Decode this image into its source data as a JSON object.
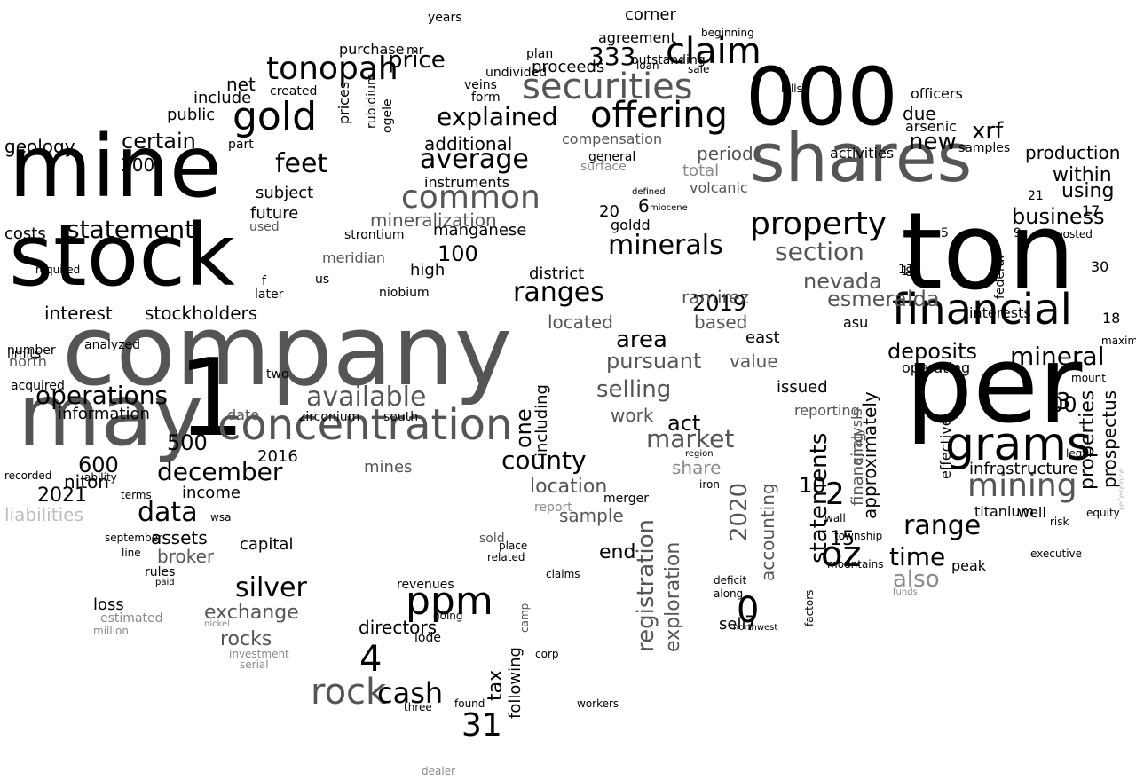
{
  "colors": {
    "background": "#ffffff",
    "primary": "#000000",
    "dark": "#555555",
    "mid": "#8a8a8a",
    "light": "#bdbdbd"
  },
  "words": [
    {
      "t": "company",
      "c": "#555555"
    },
    {
      "t": "mine",
      "c": "#000000"
    },
    {
      "t": "stock",
      "c": "#000000"
    },
    {
      "t": "may",
      "c": "#555555"
    },
    {
      "t": "1",
      "c": "#000000"
    },
    {
      "t": "ton",
      "c": "#000000"
    },
    {
      "t": "per",
      "c": "#000000"
    },
    {
      "t": "000",
      "c": "#000000"
    },
    {
      "t": "shares",
      "c": "#555555"
    },
    {
      "t": "concentration",
      "c": "#555555"
    },
    {
      "t": "financial",
      "c": "#000000"
    },
    {
      "t": "gold",
      "c": "#000000"
    },
    {
      "t": "securities",
      "c": "#555555"
    },
    {
      "t": "claim",
      "c": "#000000"
    },
    {
      "t": "offering",
      "c": "#000000"
    },
    {
      "t": "tonopah",
      "c": "#000000"
    },
    {
      "t": "grams",
      "c": "#000000"
    },
    {
      "t": "mining",
      "c": "#555555"
    },
    {
      "t": "common",
      "c": "#555555"
    },
    {
      "t": "property",
      "c": "#000000"
    },
    {
      "t": "statement",
      "c": "#000000"
    },
    {
      "t": "minerals",
      "c": "#000000"
    },
    {
      "t": "ranges",
      "c": "#000000"
    },
    {
      "t": "operations",
      "c": "#000000"
    },
    {
      "t": "available",
      "c": "#555555"
    },
    {
      "t": "average",
      "c": "#000000"
    },
    {
      "t": "explained",
      "c": "#000000"
    },
    {
      "t": "mineral",
      "c": "#000000"
    },
    {
      "t": "feet",
      "c": "#000000"
    },
    {
      "t": "silver",
      "c": "#000000"
    },
    {
      "t": "ppm",
      "c": "#000000"
    },
    {
      "t": "oz",
      "c": "#000000"
    },
    {
      "t": "data",
      "c": "#000000"
    },
    {
      "t": "market",
      "c": "#555555"
    },
    {
      "t": "county",
      "c": "#000000"
    },
    {
      "t": "selling",
      "c": "#555555"
    },
    {
      "t": "area",
      "c": "#000000"
    },
    {
      "t": "section",
      "c": "#555555"
    },
    {
      "t": "range",
      "c": "#000000"
    },
    {
      "t": "deposits",
      "c": "#000000"
    },
    {
      "t": "december",
      "c": "#000000"
    },
    {
      "t": "new",
      "c": "#000000"
    },
    {
      "t": "xrf",
      "c": "#000000"
    },
    {
      "t": "business",
      "c": "#000000"
    },
    {
      "t": "nevada",
      "c": "#555555"
    },
    {
      "t": "esmeralda",
      "c": "#555555"
    },
    {
      "t": "time",
      "c": "#000000"
    },
    {
      "t": "also",
      "c": "#8a8a8a"
    },
    {
      "t": "certain",
      "c": "#000000"
    },
    {
      "t": "interest",
      "c": "#000000"
    },
    {
      "t": "stockholders",
      "c": "#000000"
    },
    {
      "t": "price",
      "c": "#000000"
    },
    {
      "t": "333",
      "c": "#000000"
    },
    {
      "t": "within",
      "c": "#000000"
    },
    {
      "t": "production",
      "c": "#000000"
    },
    {
      "t": "using",
      "c": "#000000"
    },
    {
      "t": "rock",
      "c": "#555555"
    },
    {
      "t": "cash",
      "c": "#000000"
    },
    {
      "t": "4",
      "c": "#000000"
    },
    {
      "t": "31",
      "c": "#000000"
    },
    {
      "t": "0",
      "c": "#000000"
    },
    {
      "t": "2",
      "c": "#000000"
    },
    {
      "t": "3",
      "c": "#000000"
    },
    {
      "t": "statements",
      "c": "#000000"
    },
    {
      "t": "registration",
      "c": "#555555"
    },
    {
      "t": "exploration",
      "c": "#555555"
    },
    {
      "t": "approximately",
      "c": "#000000"
    },
    {
      "t": "prospectus",
      "c": "#000000"
    },
    {
      "t": "properties",
      "c": "#000000"
    },
    {
      "t": "2020",
      "c": "#555555"
    },
    {
      "t": "2019",
      "c": "#000000"
    },
    {
      "t": "accounting",
      "c": "#555555"
    },
    {
      "t": "financing",
      "c": "#555555"
    },
    {
      "t": "one",
      "c": "#000000"
    },
    {
      "t": "including",
      "c": "#000000"
    },
    {
      "t": "act",
      "c": "#000000"
    },
    {
      "t": "pursuant",
      "c": "#555555"
    },
    {
      "t": "exchange",
      "c": "#555555"
    },
    {
      "t": "rocks",
      "c": "#555555"
    },
    {
      "t": "broker",
      "c": "#555555"
    },
    {
      "t": "assets",
      "c": "#000000"
    },
    {
      "t": "liabilities",
      "c": "#bdbdbd"
    },
    {
      "t": "information",
      "c": "#000000"
    },
    {
      "t": "geology",
      "c": "#000000"
    },
    {
      "t": "costs",
      "c": "#000000"
    },
    {
      "t": "include",
      "c": "#000000"
    },
    {
      "t": "net",
      "c": "#000000"
    },
    {
      "t": "public",
      "c": "#000000"
    },
    {
      "t": "additional",
      "c": "#000000"
    },
    {
      "t": "mineralization",
      "c": "#555555"
    },
    {
      "t": "manganese",
      "c": "#000000"
    },
    {
      "t": "instruments",
      "c": "#000000"
    },
    {
      "t": "period",
      "c": "#555555"
    },
    {
      "t": "total",
      "c": "#8a8a8a"
    },
    {
      "t": "volcanic",
      "c": "#555555"
    },
    {
      "t": "ramirez",
      "c": "#555555"
    },
    {
      "t": "district",
      "c": "#000000"
    },
    {
      "t": "located",
      "c": "#555555"
    },
    {
      "t": "based",
      "c": "#555555"
    },
    {
      "t": "east",
      "c": "#000000"
    },
    {
      "t": "value",
      "c": "#555555"
    },
    {
      "t": "issued",
      "c": "#000000"
    },
    {
      "t": "reporting",
      "c": "#555555"
    },
    {
      "t": "analysis",
      "c": "#555555"
    },
    {
      "t": "share",
      "c": "#8a8a8a"
    },
    {
      "t": "work",
      "c": "#555555"
    },
    {
      "t": "location",
      "c": "#555555"
    },
    {
      "t": "mines",
      "c": "#555555"
    },
    {
      "t": "sample",
      "c": "#555555"
    },
    {
      "t": "end",
      "c": "#000000"
    },
    {
      "t": "loss",
      "c": "#000000"
    },
    {
      "t": "capital",
      "c": "#000000"
    },
    {
      "t": "directors",
      "c": "#000000"
    },
    {
      "t": "tax",
      "c": "#000000"
    },
    {
      "t": "following",
      "c": "#000000"
    },
    {
      "t": "income",
      "c": "#000000"
    },
    {
      "t": "niton",
      "c": "#000000"
    },
    {
      "t": "subject",
      "c": "#000000"
    },
    {
      "t": "future",
      "c": "#000000"
    },
    {
      "t": "agreement",
      "c": "#000000"
    },
    {
      "t": "proceeds",
      "c": "#000000"
    },
    {
      "t": "corner",
      "c": "#000000"
    },
    {
      "t": "compensation",
      "c": "#555555"
    },
    {
      "t": "general",
      "c": "#000000"
    },
    {
      "t": "due",
      "c": "#000000"
    },
    {
      "t": "arsenic",
      "c": "#000000"
    },
    {
      "t": "samples",
      "c": "#000000"
    },
    {
      "t": "activities",
      "c": "#000000"
    },
    {
      "t": "officers",
      "c": "#000000"
    },
    {
      "t": "infrastructure",
      "c": "#000000"
    },
    {
      "t": "titanium",
      "c": "#000000"
    },
    {
      "t": "well",
      "c": "#000000"
    },
    {
      "t": "peak",
      "c": "#000000"
    },
    {
      "t": "interests",
      "c": "#000000"
    },
    {
      "t": "federal",
      "c": "#000000"
    },
    {
      "t": "asu",
      "c": "#000000"
    },
    {
      "t": "operating",
      "c": "#000000"
    },
    {
      "t": "effective",
      "c": "#000000"
    },
    {
      "t": "high",
      "c": "#000000"
    },
    {
      "t": "100",
      "c": "#000000"
    },
    {
      "t": "goldd",
      "c": "#000000"
    },
    {
      "t": "6",
      "c": "#000000"
    },
    {
      "t": "15",
      "c": "#000000"
    },
    {
      "t": "7",
      "c": "#000000"
    },
    {
      "t": "10",
      "c": "#000000"
    },
    {
      "t": "00",
      "c": "#000000"
    },
    {
      "t": "17",
      "c": "#000000"
    },
    {
      "t": "5",
      "c": "#000000"
    },
    {
      "t": "9",
      "c": "#000000"
    },
    {
      "t": "12",
      "c": "#000000"
    },
    {
      "t": "11",
      "c": "#000000"
    },
    {
      "t": "600",
      "c": "#000000"
    },
    {
      "t": "500",
      "c": "#000000"
    },
    {
      "t": "300",
      "c": "#000000"
    },
    {
      "t": "2021",
      "c": "#000000"
    },
    {
      "t": "2016",
      "c": "#000000"
    },
    {
      "t": "20",
      "c": "#000000"
    },
    {
      "t": "30",
      "c": "#000000"
    },
    {
      "t": "18",
      "c": "#000000"
    },
    {
      "t": "21",
      "c": "#000000"
    },
    {
      "t": "8",
      "c": "#000000"
    },
    {
      "t": "f",
      "c": "#000000"
    },
    {
      "t": "two",
      "c": "#000000"
    },
    {
      "t": "us",
      "c": "#000000"
    },
    {
      "t": "sell",
      "c": "#000000"
    },
    {
      "t": "north",
      "c": "#555555"
    },
    {
      "t": "date",
      "c": "#555555"
    },
    {
      "t": "ogele",
      "c": "#000000"
    },
    {
      "t": "rubidium",
      "c": "#000000"
    },
    {
      "t": "prices",
      "c": "#000000"
    },
    {
      "t": "created",
      "c": "#000000"
    },
    {
      "t": "part",
      "c": "#000000"
    },
    {
      "t": "used",
      "c": "#555555"
    },
    {
      "t": "later",
      "c": "#000000"
    },
    {
      "t": "meridian",
      "c": "#555555"
    },
    {
      "t": "strontium",
      "c": "#000000"
    },
    {
      "t": "niobium",
      "c": "#000000"
    },
    {
      "t": "zirconium",
      "c": "#000000"
    },
    {
      "t": "south",
      "c": "#000000"
    },
    {
      "t": "acquired",
      "c": "#000000"
    },
    {
      "t": "analyzed",
      "c": "#000000"
    },
    {
      "t": "limits",
      "c": "#000000"
    },
    {
      "t": "number",
      "c": "#000000"
    },
    {
      "t": "required",
      "c": "#000000"
    },
    {
      "t": "purchase",
      "c": "#000000"
    },
    {
      "t": "mr",
      "c": "#000000"
    },
    {
      "t": "years",
      "c": "#000000"
    },
    {
      "t": "undivided",
      "c": "#000000"
    },
    {
      "t": "veins",
      "c": "#000000"
    },
    {
      "t": "form",
      "c": "#000000"
    },
    {
      "t": "plan",
      "c": "#000000"
    },
    {
      "t": "outstanding",
      "c": "#000000"
    },
    {
      "t": "beginning",
      "c": "#000000"
    },
    {
      "t": "sale",
      "c": "#000000"
    },
    {
      "t": "loan",
      "c": "#000000"
    },
    {
      "t": "hills",
      "c": "#000000"
    },
    {
      "t": "surface",
      "c": "#8a8a8a"
    },
    {
      "t": "defined",
      "c": "#000000"
    },
    {
      "t": "miocene",
      "c": "#000000"
    },
    {
      "t": "report",
      "c": "#8a8a8a"
    },
    {
      "t": "merger",
      "c": "#000000"
    },
    {
      "t": "place",
      "c": "#000000"
    },
    {
      "t": "sold",
      "c": "#555555"
    },
    {
      "t": "related",
      "c": "#000000"
    },
    {
      "t": "claims",
      "c": "#000000"
    },
    {
      "t": "revenues",
      "c": "#000000"
    },
    {
      "t": "lode",
      "c": "#000000"
    },
    {
      "t": "going",
      "c": "#000000"
    },
    {
      "t": "camp",
      "c": "#555555"
    },
    {
      "t": "corp",
      "c": "#000000"
    },
    {
      "t": "three",
      "c": "#000000"
    },
    {
      "t": "workers",
      "c": "#000000"
    },
    {
      "t": "found",
      "c": "#000000"
    },
    {
      "t": "dealer",
      "c": "#8a8a8a"
    },
    {
      "t": "estimated",
      "c": "#8a8a8a"
    },
    {
      "t": "million",
      "c": "#8a8a8a"
    },
    {
      "t": "investment",
      "c": "#8a8a8a"
    },
    {
      "t": "serial",
      "c": "#8a8a8a"
    },
    {
      "t": "nickel",
      "c": "#8a8a8a"
    },
    {
      "t": "rules",
      "c": "#000000"
    },
    {
      "t": "paid",
      "c": "#000000"
    },
    {
      "t": "wsa",
      "c": "#000000"
    },
    {
      "t": "september",
      "c": "#000000"
    },
    {
      "t": "line",
      "c": "#000000"
    },
    {
      "t": "recorded",
      "c": "#000000"
    },
    {
      "t": "ability",
      "c": "#000000"
    },
    {
      "t": "terms",
      "c": "#000000"
    },
    {
      "t": "deficit",
      "c": "#000000"
    },
    {
      "t": "along",
      "c": "#000000"
    },
    {
      "t": "northwest",
      "c": "#000000"
    },
    {
      "t": "iron",
      "c": "#000000"
    },
    {
      "t": "region",
      "c": "#000000"
    },
    {
      "t": "wall",
      "c": "#000000"
    },
    {
      "t": "township",
      "c": "#000000"
    },
    {
      "t": "mountains",
      "c": "#000000"
    },
    {
      "t": "factors",
      "c": "#000000"
    },
    {
      "t": "risk",
      "c": "#000000"
    },
    {
      "t": "mount",
      "c": "#000000"
    },
    {
      "t": "equity",
      "c": "#000000"
    },
    {
      "t": "executive",
      "c": "#000000"
    },
    {
      "t": "legal",
      "c": "#000000"
    },
    {
      "t": "posted",
      "c": "#000000"
    },
    {
      "t": "maximum",
      "c": "#000000"
    },
    {
      "t": "reference",
      "c": "#bdbdbd"
    },
    {
      "t": "funds",
      "c": "#8a8a8a"
    }
  ]
}
